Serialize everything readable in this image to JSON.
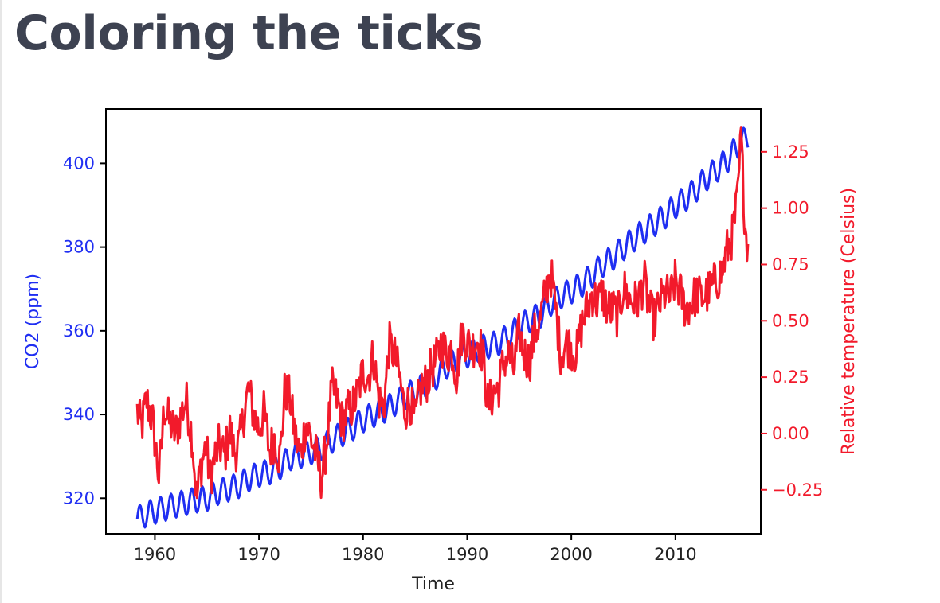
{
  "slide": {
    "title": "Coloring the ticks"
  },
  "colors": {
    "title": "#3d4251",
    "co2": "#1f2ef2",
    "temp": "#f21a2b",
    "axis": "#000000",
    "xtick_text": "#222222"
  },
  "chart_data": {
    "type": "line",
    "title": "",
    "xlabel": "Time",
    "ylabel": "CO2 (ppm)",
    "y2label": "Relative temperature (Celsius)",
    "xlim": [
      1955.3,
      2018.2
    ],
    "ylim": [
      311.5,
      413
    ],
    "y2lim": [
      -0.445,
      1.44
    ],
    "xticks": [
      1960,
      1970,
      1980,
      1990,
      2000,
      2010
    ],
    "xtick_labels": [
      "1960",
      "1970",
      "1980",
      "1990",
      "2000",
      "2010"
    ],
    "yticks": [
      320,
      340,
      360,
      380,
      400
    ],
    "ytick_labels": [
      "320",
      "340",
      "360",
      "380",
      "400"
    ],
    "y2ticks": [
      -0.25,
      0.0,
      0.25,
      0.5,
      0.75,
      1.0,
      1.25
    ],
    "y2tick_labels": [
      "−0.25",
      "0.00",
      "0.25",
      "0.50",
      "0.75",
      "1.00",
      "1.25"
    ],
    "grid": false,
    "series": [
      {
        "name": "CO2 (ppm)",
        "axis": "left",
        "color": "#1f2ef2",
        "x": [
          1958.3,
          1959,
          1960,
          1961,
          1962,
          1963,
          1964,
          1965,
          1966,
          1967,
          1968,
          1969,
          1970,
          1971,
          1972,
          1973,
          1974,
          1975,
          1976,
          1977,
          1978,
          1979,
          1980,
          1981,
          1982,
          1983,
          1984,
          1985,
          1986,
          1987,
          1988,
          1989,
          1990,
          1991,
          1992,
          1993,
          1994,
          1995,
          1996,
          1997,
          1998,
          1999,
          2000,
          2001,
          2002,
          2003,
          2004,
          2005,
          2006,
          2007,
          2008,
          2009,
          2010,
          2011,
          2012,
          2013,
          2014,
          2015,
          2016,
          2017
        ],
        "values": [
          315.0,
          316.0,
          316.9,
          317.6,
          318.4,
          319.0,
          319.6,
          320.0,
          321.4,
          322.2,
          323.0,
          324.6,
          325.7,
          326.3,
          327.5,
          329.7,
          330.2,
          331.1,
          332.0,
          333.8,
          335.4,
          336.8,
          338.7,
          340.0,
          341.0,
          342.6,
          344.2,
          345.7,
          347.0,
          348.9,
          351.5,
          352.9,
          354.2,
          355.6,
          356.4,
          357.1,
          358.8,
          360.8,
          362.6,
          363.7,
          366.6,
          368.3,
          369.5,
          371.1,
          373.2,
          375.8,
          377.5,
          379.8,
          381.9,
          383.8,
          385.6,
          387.4,
          389.9,
          391.6,
          393.8,
          396.5,
          398.6,
          400.8,
          404.2,
          406.5
        ],
        "seasonal_amplitude_ppm": 3
      },
      {
        "name": "Relative temperature (Celsius)",
        "axis": "right",
        "color": "#f21a2b",
        "x": [
          1958.3,
          1958.7,
          1959.2,
          1959.8,
          1960.4,
          1960.9,
          1961.4,
          1962.0,
          1962.5,
          1963.0,
          1963.6,
          1964.0,
          1964.4,
          1964.9,
          1965.3,
          1965.8,
          1966.2,
          1966.7,
          1967.2,
          1967.6,
          1968.1,
          1968.6,
          1969.0,
          1969.5,
          1970.0,
          1970.5,
          1971.0,
          1971.5,
          1972.0,
          1972.5,
          1973.0,
          1973.5,
          1974.0,
          1974.5,
          1975.0,
          1975.5,
          1976.0,
          1976.5,
          1977.0,
          1977.5,
          1978.0,
          1978.5,
          1979.0,
          1979.5,
          1980.0,
          1980.5,
          1981.0,
          1981.5,
          1982.0,
          1982.5,
          1983.0,
          1983.5,
          1984.0,
          1984.5,
          1985.0,
          1985.5,
          1986.0,
          1986.5,
          1987.0,
          1987.5,
          1988.0,
          1988.5,
          1989.0,
          1989.5,
          1990.0,
          1990.5,
          1991.0,
          1991.5,
          1992.0,
          1992.5,
          1993.0,
          1993.5,
          1994.0,
          1994.5,
          1995.0,
          1995.5,
          1996.0,
          1996.5,
          1997.0,
          1997.5,
          1998.0,
          1998.5,
          1999.0,
          1999.5,
          2000.0,
          2000.5,
          2001.0,
          2001.5,
          2002.0,
          2002.5,
          2003.0,
          2003.5,
          2004.0,
          2004.5,
          2005.0,
          2005.5,
          2006.0,
          2006.5,
          2007.0,
          2007.5,
          2008.0,
          2008.5,
          2009.0,
          2009.5,
          2010.0,
          2010.5,
          2011.0,
          2011.5,
          2012.0,
          2012.5,
          2013.0,
          2013.5,
          2014.0,
          2014.5,
          2015.0,
          2015.5,
          2016.0,
          2016.3,
          2016.7,
          2017.0
        ],
        "values": [
          0.1,
          0.02,
          0.15,
          0.05,
          -0.2,
          0.12,
          0.05,
          0.0,
          0.08,
          0.15,
          -0.02,
          -0.3,
          -0.15,
          -0.05,
          -0.2,
          -0.1,
          -0.05,
          -0.1,
          0.02,
          -0.08,
          -0.05,
          0.1,
          0.2,
          0.08,
          0.02,
          0.1,
          -0.08,
          -0.02,
          -0.12,
          0.2,
          0.15,
          -0.02,
          -0.1,
          0.05,
          -0.02,
          -0.1,
          -0.2,
          -0.05,
          0.2,
          0.15,
          0.05,
          0.1,
          0.12,
          0.18,
          0.28,
          0.25,
          0.35,
          0.15,
          0.12,
          0.4,
          0.35,
          0.25,
          0.1,
          0.15,
          0.05,
          0.2,
          0.22,
          0.28,
          0.32,
          0.4,
          0.35,
          0.38,
          0.25,
          0.45,
          0.4,
          0.38,
          0.42,
          0.35,
          0.12,
          0.18,
          0.2,
          0.32,
          0.35,
          0.28,
          0.45,
          0.35,
          0.32,
          0.45,
          0.5,
          0.62,
          0.72,
          0.55,
          0.35,
          0.4,
          0.38,
          0.35,
          0.48,
          0.55,
          0.62,
          0.58,
          0.62,
          0.55,
          0.55,
          0.52,
          0.65,
          0.6,
          0.58,
          0.6,
          0.68,
          0.55,
          0.5,
          0.58,
          0.62,
          0.6,
          0.68,
          0.62,
          0.55,
          0.58,
          0.62,
          0.6,
          0.62,
          0.65,
          0.68,
          0.72,
          0.82,
          0.88,
          1.05,
          1.32,
          0.92,
          0.82
        ],
        "noise_amplitude_celsius": 0.1
      }
    ]
  }
}
